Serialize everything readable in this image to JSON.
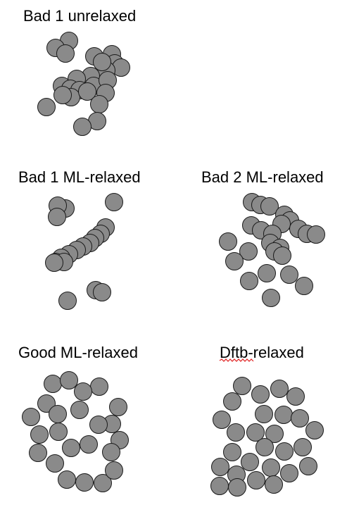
{
  "panels": [
    {
      "id": "bad1-unrelaxed",
      "title": "Bad 1 unrelaxed"
    },
    {
      "id": "bad1-ml-relaxed",
      "title": "Bad 1 ML-relaxed"
    },
    {
      "id": "bad2-ml-relaxed",
      "title": "Bad 2 ML-relaxed"
    },
    {
      "id": "good-ml-relaxed",
      "title": "Good ML-relaxed"
    },
    {
      "id": "dftb-relaxed",
      "title": "Dftb-relaxed"
    }
  ],
  "colors": {
    "atom_fill": "#8a8a8a",
    "atom_stroke": "#1a1a1a",
    "spellcheck_underline": "#e02020"
  }
}
